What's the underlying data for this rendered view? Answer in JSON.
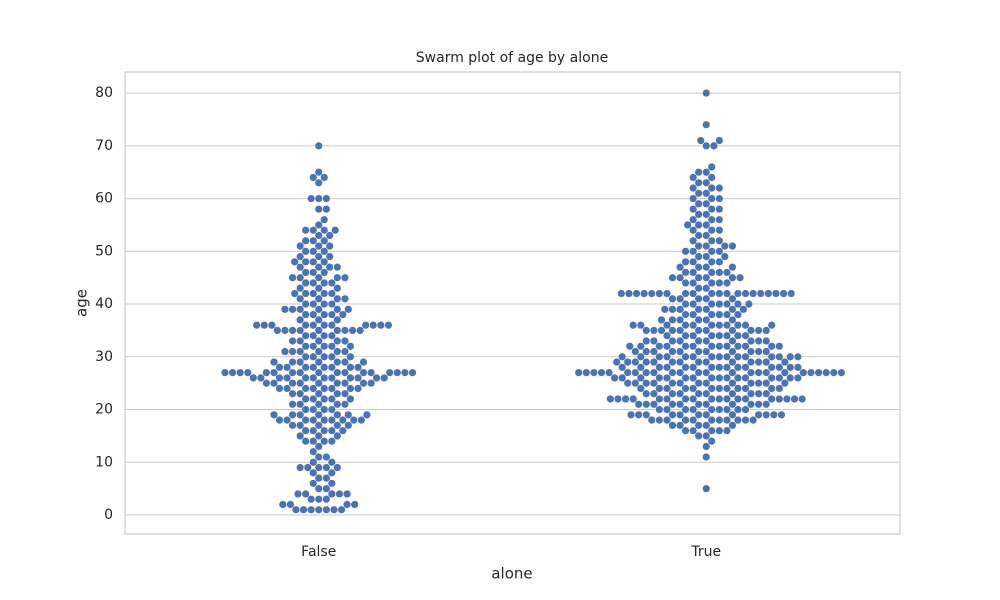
{
  "chart_data": {
    "type": "swarm",
    "title": "Swarm plot of age by alone",
    "xlabel": "alone",
    "ylabel": "age",
    "categories": [
      "False",
      "True"
    ],
    "color": "#4c72b0",
    "ylim": [
      -3.6,
      84
    ],
    "yticks": [
      0,
      10,
      20,
      30,
      40,
      50,
      60,
      70,
      80
    ],
    "grid": true,
    "values": [
      [
        1,
        1,
        1,
        1,
        1,
        1,
        1,
        2,
        2,
        2,
        2,
        3,
        3,
        3,
        4,
        4,
        4,
        4,
        4,
        5,
        5,
        6,
        6,
        7,
        7,
        8,
        8,
        9,
        9,
        9,
        9,
        9,
        10,
        10,
        11,
        11,
        12,
        13,
        14,
        14,
        14,
        14,
        15,
        15,
        15,
        16,
        16,
        16,
        16,
        16,
        17,
        17,
        17,
        17,
        17,
        18,
        18,
        18,
        18,
        18,
        18,
        18,
        18,
        18,
        19,
        19,
        19,
        19,
        19,
        19,
        19,
        20,
        20,
        20,
        20,
        21,
        21,
        21,
        21,
        21,
        22,
        22,
        22,
        22,
        22,
        23,
        23,
        23,
        23,
        23,
        24,
        24,
        24,
        24,
        24,
        24,
        24,
        24,
        25,
        25,
        25,
        25,
        25,
        25,
        25,
        25,
        25,
        26,
        26,
        26,
        26,
        26,
        26,
        26,
        26,
        26,
        26,
        26,
        26,
        27,
        27,
        27,
        27,
        27,
        27,
        27,
        27,
        27,
        27,
        27,
        27,
        27,
        27,
        27,
        27,
        27,
        28,
        28,
        28,
        28,
        28,
        28,
        28,
        28,
        29,
        29,
        29,
        29,
        29,
        29,
        29,
        30,
        30,
        30,
        30,
        30,
        31,
        31,
        31,
        31,
        31,
        31,
        32,
        32,
        32,
        32,
        32,
        33,
        33,
        33,
        33,
        33,
        34,
        34,
        34,
        34,
        35,
        35,
        35,
        35,
        35,
        35,
        35,
        35,
        35,
        36,
        36,
        36,
        36,
        36,
        36,
        36,
        36,
        36,
        36,
        36,
        37,
        37,
        37,
        38,
        38,
        38,
        38,
        38,
        39,
        39,
        39,
        39,
        39,
        39,
        40,
        40,
        40,
        40,
        41,
        41,
        41,
        41,
        42,
        42,
        42,
        42,
        42,
        43,
        43,
        43,
        44,
        44,
        44,
        44,
        45,
        45,
        45,
        45,
        45,
        46,
        46,
        46,
        47,
        47,
        47,
        47,
        48,
        48,
        48,
        48,
        49,
        49,
        49,
        50,
        50,
        50,
        51,
        51,
        51,
        52,
        52,
        52,
        53,
        53,
        54,
        54,
        54,
        54,
        55,
        56,
        58,
        58,
        60,
        60,
        60,
        63,
        64,
        64,
        65,
        70
      ],
      [
        5,
        11,
        13,
        14,
        15,
        15,
        16,
        16,
        16,
        16,
        16,
        17,
        17,
        17,
        17,
        17,
        18,
        18,
        18,
        18,
        18,
        18,
        18,
        18,
        18,
        18,
        18,
        19,
        19,
        19,
        19,
        19,
        19,
        19,
        19,
        19,
        19,
        19,
        19,
        20,
        20,
        20,
        20,
        20,
        20,
        20,
        20,
        20,
        21,
        21,
        21,
        21,
        21,
        21,
        21,
        21,
        21,
        21,
        21,
        22,
        22,
        22,
        22,
        22,
        22,
        22,
        22,
        22,
        22,
        22,
        22,
        22,
        22,
        22,
        22,
        22,
        22,
        23,
        23,
        23,
        23,
        23,
        23,
        23,
        23,
        23,
        23,
        24,
        24,
        24,
        24,
        24,
        24,
        24,
        24,
        24,
        24,
        24,
        24,
        25,
        25,
        25,
        25,
        25,
        25,
        25,
        25,
        25,
        25,
        25,
        25,
        25,
        26,
        26,
        26,
        26,
        26,
        26,
        26,
        26,
        26,
        26,
        26,
        26,
        26,
        26,
        26,
        26,
        27,
        27,
        27,
        27,
        27,
        27,
        27,
        27,
        27,
        27,
        27,
        27,
        27,
        27,
        27,
        27,
        27,
        27,
        27,
        27,
        27,
        27,
        27,
        27,
        28,
        28,
        28,
        28,
        28,
        28,
        28,
        28,
        28,
        28,
        28,
        28,
        28,
        28,
        28,
        29,
        29,
        29,
        29,
        29,
        29,
        29,
        29,
        29,
        29,
        29,
        29,
        29,
        29,
        30,
        30,
        30,
        30,
        30,
        30,
        30,
        30,
        30,
        30,
        30,
        30,
        30,
        30,
        30,
        31,
        31,
        31,
        31,
        31,
        31,
        31,
        31,
        31,
        31,
        31,
        32,
        32,
        32,
        32,
        32,
        32,
        32,
        32,
        32,
        32,
        32,
        32,
        32,
        33,
        33,
        33,
        33,
        33,
        33,
        33,
        33,
        33,
        33,
        34,
        34,
        34,
        34,
        34,
        34,
        34,
        34,
        35,
        35,
        35,
        35,
        35,
        35,
        35,
        35,
        35,
        35,
        35,
        36,
        36,
        36,
        36,
        36,
        36,
        36,
        36,
        36,
        36,
        36,
        37,
        37,
        37,
        37,
        37,
        37,
        38,
        38,
        38,
        38,
        38,
        38,
        39,
        39,
        39,
        39,
        39,
        39,
        39,
        40,
        40,
        40,
        40,
        40,
        40,
        40,
        41,
        41,
        41,
        41,
        41,
        42,
        42,
        42,
        42,
        42,
        42,
        42,
        42,
        42,
        42,
        42,
        42,
        42,
        42,
        42,
        42,
        42,
        42,
        42,
        42,
        43,
        43,
        44,
        44,
        44,
        44,
        44,
        45,
        45,
        45,
        45,
        45,
        45,
        46,
        46,
        46,
        46,
        46,
        47,
        47,
        47,
        47,
        48,
        48,
        48,
        48,
        49,
        49,
        49,
        50,
        50,
        50,
        50,
        51,
        51,
        51,
        51,
        52,
        52,
        52,
        53,
        53,
        54,
        54,
        54,
        55,
        55,
        55,
        56,
        56,
        56,
        57,
        57,
        58,
        58,
        58,
        59,
        59,
        60,
        60,
        60,
        61,
        61,
        62,
        62,
        62,
        63,
        63,
        64,
        64,
        65,
        65,
        66,
        70,
        70,
        71,
        71,
        74,
        80
      ]
    ]
  }
}
